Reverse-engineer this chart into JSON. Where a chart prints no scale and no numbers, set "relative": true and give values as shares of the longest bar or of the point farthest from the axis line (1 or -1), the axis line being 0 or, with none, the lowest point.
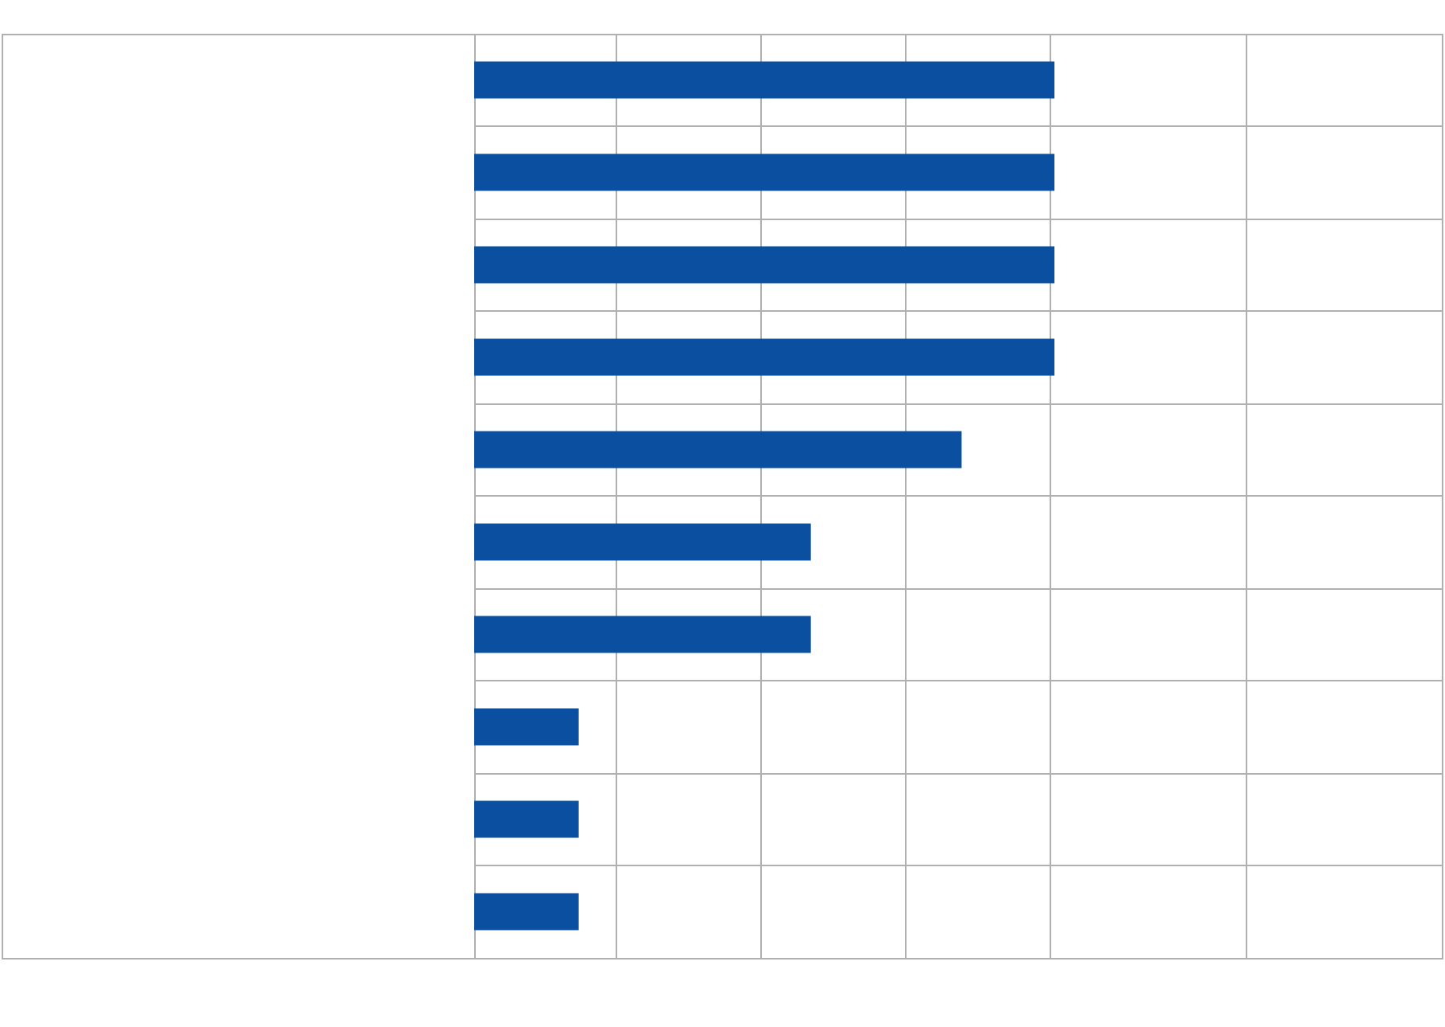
{
  "chart_data": {
    "type": "bar",
    "orientation": "horizontal",
    "relative": true,
    "categories": [
      null,
      null,
      null,
      null,
      null,
      null,
      null,
      null,
      null,
      null
    ],
    "values": [
      1,
      1,
      1,
      1,
      0.84,
      0.58,
      0.58,
      0.18,
      0.18,
      0.18
    ],
    "color": "#0b50a0",
    "grid": true
  }
}
